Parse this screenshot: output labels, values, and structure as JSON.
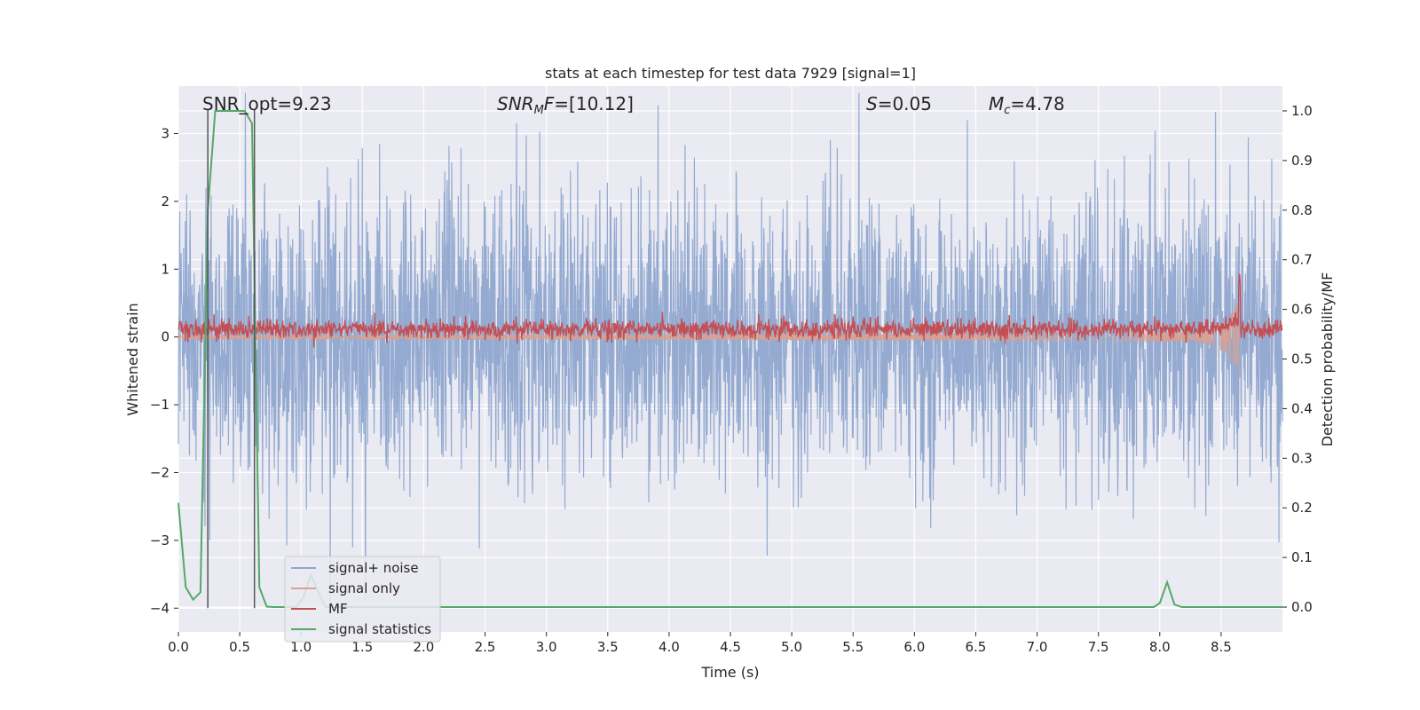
{
  "chart_data": {
    "type": "line",
    "title": "stats at each timestep for test data 7929 [signal=1]",
    "xlabel": "Time (s)",
    "ylabel": "Whitened strain",
    "ylabel_right": "Detection probability/MF",
    "xlim": [
      0.0,
      9.0
    ],
    "ylim": [
      -4.35,
      3.7
    ],
    "ylim_right": [
      -0.05,
      1.05
    ],
    "xticks": [
      "0.0",
      "0.5",
      "1.0",
      "1.5",
      "2.0",
      "2.5",
      "3.0",
      "3.5",
      "4.0",
      "4.5",
      "5.0",
      "5.5",
      "6.0",
      "6.5",
      "7.0",
      "7.5",
      "8.0",
      "8.5"
    ],
    "xtick_values": [
      0.0,
      0.5,
      1.0,
      1.5,
      2.0,
      2.5,
      3.0,
      3.5,
      4.0,
      4.5,
      5.0,
      5.5,
      6.0,
      6.5,
      7.0,
      7.5,
      8.0,
      8.5
    ],
    "yticks": [
      "3",
      "2",
      "1",
      "0",
      "−1",
      "−2",
      "−3",
      "−4"
    ],
    "ytick_values": [
      3,
      2,
      1,
      0,
      -1,
      -2,
      -3,
      -4
    ],
    "yticks_right": [
      "1.0",
      "0.9",
      "0.8",
      "0.7",
      "0.6",
      "0.5",
      "0.4",
      "0.3",
      "0.2",
      "0.1",
      "0.0"
    ],
    "ytick_right_values": [
      1.0,
      0.9,
      0.8,
      0.7,
      0.6,
      0.5,
      0.4,
      0.3,
      0.2,
      0.1,
      0.0
    ],
    "annotations": {
      "snr_opt": "SNR_opt=9.23",
      "snr_mf_prefix": "SNR",
      "snr_mf_sub": "M",
      "snr_mf_italic": "F",
      "snr_mf_value": "=[10.12]",
      "s_sym": "S",
      "s_value": "=0.05",
      "mc_sym": "M",
      "mc_sub": "c",
      "mc_value": "=4.78"
    },
    "vlines": [
      0.24,
      0.62
    ],
    "signal_noise": {
      "name": "signal+ noise",
      "color": "#8fa7cf",
      "duration": 9.0,
      "std": 1.05
    },
    "signal_only": {
      "name": "signal only",
      "color": "#d9a08f",
      "chirp_end": 8.65,
      "amp_start": 0.04,
      "amp_end": 0.6
    },
    "mf": {
      "name": "MF",
      "color": "#c44e52",
      "baseline": 0.115,
      "noise": 0.07,
      "peak_time": 8.65,
      "peak_value": 1.0
    },
    "signal_statistics": {
      "name": "signal statistics",
      "color": "#55a868",
      "x": [
        0.0,
        0.06,
        0.12,
        0.18,
        0.24,
        0.3,
        0.36,
        0.42,
        0.48,
        0.54,
        0.6,
        0.66,
        0.72,
        0.78,
        0.84,
        0.9,
        0.96,
        1.02,
        1.08,
        1.14,
        1.2,
        1.3,
        1.5,
        2.0,
        3.0,
        4.0,
        5.0,
        6.0,
        7.0,
        7.5,
        7.95,
        8.0,
        8.06,
        8.12,
        8.18,
        8.3,
        8.5,
        9.0
      ],
      "y": [
        0.21,
        0.04,
        0.015,
        0.03,
        0.8,
        1.0,
        1.0,
        1.0,
        1.0,
        1.0,
        0.975,
        0.04,
        0.001,
        0.0,
        0.0,
        0.0,
        0.0,
        0.02,
        0.065,
        0.03,
        0.0,
        0.0,
        0.0,
        0.0,
        0.0,
        0.0,
        0.0,
        0.0,
        0.0,
        0.0,
        0.0,
        0.008,
        0.05,
        0.005,
        0.0,
        0.0,
        0.0,
        0.0
      ]
    },
    "legend_position": "lower-left",
    "grid": true
  }
}
